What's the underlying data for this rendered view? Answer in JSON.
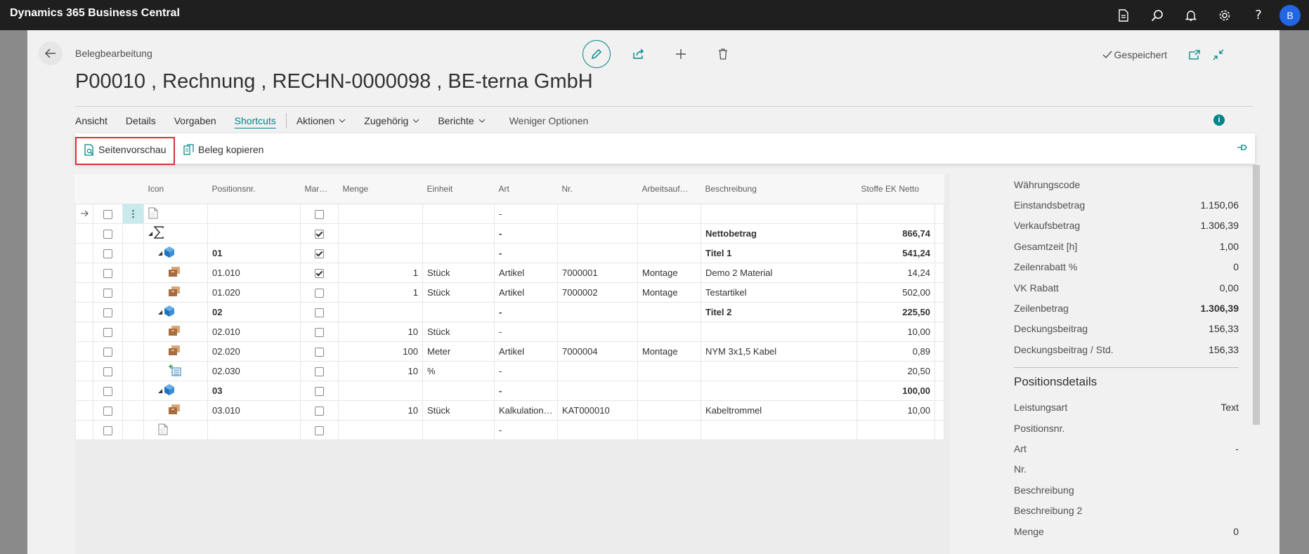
{
  "app": {
    "title": "Dynamics 365 Business Central",
    "user_initial": "B"
  },
  "header": {
    "breadcrumb": "Belegbearbeitung",
    "title": "P00010 , Rechnung , RECHN-0000098 , BE-terna GmbH",
    "saved_label": "Gespeichert"
  },
  "menu": {
    "items": [
      {
        "label": "Ansicht"
      },
      {
        "label": "Details"
      },
      {
        "label": "Vorgaben"
      },
      {
        "label": "Shortcuts"
      }
    ],
    "dropdowns": [
      {
        "label": "Aktionen"
      },
      {
        "label": "Zugehörig"
      },
      {
        "label": "Berichte"
      }
    ],
    "less_options": "Weniger Optionen"
  },
  "ribbon": {
    "page_preview": "Seitenvorschau",
    "copy_document": "Beleg kopieren"
  },
  "grid": {
    "columns": {
      "icon": "Icon",
      "position": "Positionsnr.",
      "marked": "Mar…",
      "quantity": "Menge",
      "unit": "Einheit",
      "type": "Art",
      "number": "Nr.",
      "work_type": "Arbeitsauf…",
      "description": "Beschreibung",
      "cost_net": "Stoffe EK Netto"
    },
    "rows": [
      {
        "icon": "document-icon",
        "level": 0,
        "pos": "",
        "marked": false,
        "qty": "",
        "unit": "",
        "type": "-",
        "nr": "",
        "work": "",
        "desc": "",
        "amount": "",
        "bold": false,
        "current": true,
        "collapse": false
      },
      {
        "icon": "sum-icon",
        "level": 0,
        "pos": "",
        "marked": true,
        "qty": "",
        "unit": "",
        "type": "-",
        "nr": "",
        "work": "",
        "desc": "Nettobetrag",
        "amount": "866,74",
        "bold": true,
        "current": false,
        "collapse": true
      },
      {
        "icon": "title-cube-icon",
        "level": 1,
        "pos": "01",
        "marked": true,
        "qty": "",
        "unit": "",
        "type": "-",
        "nr": "",
        "work": "",
        "desc": "Titel 1",
        "amount": "541,24",
        "bold": true,
        "current": false,
        "collapse": true
      },
      {
        "icon": "box-icon",
        "level": 2,
        "pos": "01.010",
        "marked": true,
        "qty": "1",
        "unit": "Stück",
        "type": "Artikel",
        "nr": "7000001",
        "work": "Montage",
        "desc": "Demo 2 Material",
        "amount": "14,24",
        "bold": false,
        "current": false,
        "collapse": false
      },
      {
        "icon": "box-icon",
        "level": 2,
        "pos": "01.020",
        "marked": false,
        "qty": "1",
        "unit": "Stück",
        "type": "Artikel",
        "nr": "7000002",
        "work": "Montage",
        "desc": "Testartikel",
        "amount": "502,00",
        "bold": false,
        "current": false,
        "collapse": false
      },
      {
        "icon": "title-cube-icon",
        "level": 1,
        "pos": "02",
        "marked": false,
        "qty": "",
        "unit": "",
        "type": "-",
        "nr": "",
        "work": "",
        "desc": "Titel 2",
        "amount": "225,50",
        "bold": true,
        "current": false,
        "collapse": true
      },
      {
        "icon": "box-icon",
        "level": 2,
        "pos": "02.010",
        "marked": false,
        "qty": "10",
        "unit": "Stück",
        "type": "-",
        "nr": "",
        "work": "",
        "desc": "",
        "amount": "10,00",
        "bold": false,
        "current": false,
        "collapse": false
      },
      {
        "icon": "box-icon",
        "level": 2,
        "pos": "02.020",
        "marked": false,
        "qty": "100",
        "unit": "Meter",
        "type": "Artikel",
        "nr": "7000004",
        "work": "Montage",
        "desc": "NYM 3x1,5 Kabel",
        "amount": "0,89",
        "bold": false,
        "current": false,
        "collapse": false
      },
      {
        "icon": "surcharge-icon",
        "level": 2,
        "pos": "02.030",
        "marked": false,
        "qty": "10",
        "unit": "%",
        "type": "-",
        "nr": "",
        "work": "",
        "desc": "",
        "amount": "20,50",
        "bold": false,
        "current": false,
        "collapse": false
      },
      {
        "icon": "title-cube-icon",
        "level": 1,
        "pos": "03",
        "marked": false,
        "qty": "",
        "unit": "",
        "type": "-",
        "nr": "",
        "work": "",
        "desc": "",
        "amount": "100,00",
        "bold": true,
        "current": false,
        "collapse": true
      },
      {
        "icon": "box-icon",
        "level": 2,
        "pos": "03.010",
        "marked": false,
        "qty": "10",
        "unit": "Stück",
        "type": "Kalkulation…",
        "nr": "KAT000010",
        "work": "",
        "desc": "Kabeltrommel",
        "amount": "10,00",
        "bold": false,
        "current": false,
        "collapse": false
      },
      {
        "icon": "document-icon",
        "level": 1,
        "pos": "",
        "marked": false,
        "qty": "",
        "unit": "",
        "type": "-",
        "nr": "",
        "work": "",
        "desc": "",
        "amount": "",
        "bold": false,
        "current": false,
        "collapse": false
      }
    ]
  },
  "factbox": {
    "totals": [
      {
        "label": "Währungscode",
        "value": "",
        "bold": false
      },
      {
        "label": "Einstandsbetrag",
        "value": "1.150,06",
        "bold": false
      },
      {
        "label": "Verkaufsbetrag",
        "value": "1.306,39",
        "bold": false
      },
      {
        "label": "Gesamtzeit [h]",
        "value": "1,00",
        "bold": false
      },
      {
        "label": "Zeilenrabatt %",
        "value": "0",
        "bold": false
      },
      {
        "label": "VK Rabatt",
        "value": "0,00",
        "bold": false
      },
      {
        "label": "Zeilenbetrag",
        "value": "1.306,39",
        "bold": true
      },
      {
        "label": "Deckungsbeitrag",
        "value": "156,33",
        "bold": false
      },
      {
        "label": "Deckungsbeitrag / Std.",
        "value": "156,33",
        "bold": false
      }
    ],
    "details_title": "Positionsdetails",
    "details": [
      {
        "label": "Leistungsart",
        "value": "Text"
      },
      {
        "label": "Positionsnr.",
        "value": ""
      },
      {
        "label": "Art",
        "value": "-"
      },
      {
        "label": "Nr.",
        "value": ""
      },
      {
        "label": "Beschreibung",
        "value": ""
      },
      {
        "label": "Beschreibung 2",
        "value": ""
      },
      {
        "label": "Menge",
        "value": "0"
      }
    ]
  },
  "colors": {
    "accent": "#008489",
    "highlight_border": "#d13438",
    "topbar": "#1f1f1f",
    "avatar": "#2266e3"
  }
}
